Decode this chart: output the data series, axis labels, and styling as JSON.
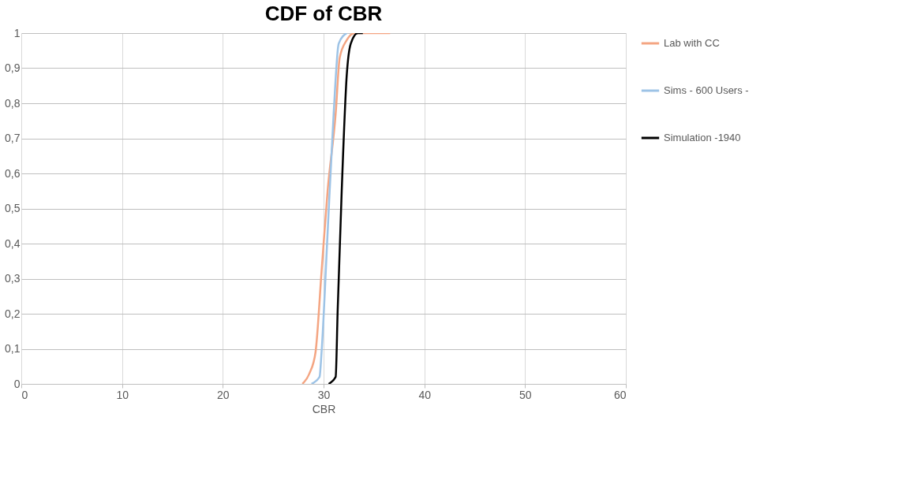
{
  "chart_data": {
    "type": "line",
    "title": "CDF of CBR",
    "xlabel": "CBR",
    "xlim": [
      0,
      60
    ],
    "xticks": [
      0,
      10,
      20,
      30,
      40,
      50,
      60
    ],
    "ylim": [
      0,
      1
    ],
    "yticks": [
      0,
      {
        "value": 0.1,
        "label": "0,1"
      },
      {
        "value": 0.2,
        "label": "0,2"
      },
      {
        "value": 0.3,
        "label": "0,3"
      },
      {
        "value": 0.4,
        "label": "0,4"
      },
      {
        "value": 0.5,
        "label": "0,5"
      },
      {
        "value": 0.6,
        "label": "0,6"
      },
      {
        "value": 0.7,
        "label": "0,7"
      },
      {
        "value": 0.8,
        "label": "0,8"
      },
      {
        "value": 0.9,
        "label": "0,9"
      },
      1
    ],
    "grid": true,
    "legend": "right",
    "line_style": "solid",
    "marker": "none",
    "series": [
      {
        "name": "Lab with CC",
        "color": "#f4a582",
        "x": [
          27.9,
          28.6,
          29.2,
          29.8,
          30.4,
          31.2,
          31.6,
          32.3,
          33.1,
          36.6
        ],
        "values": [
          0,
          0.03,
          0.09,
          0.32,
          0.55,
          0.77,
          0.93,
          0.98,
          1.0,
          1.0
        ]
      },
      {
        "name": "Sims - 600 Users -",
        "color": "#9dc3e6",
        "x": [
          28.8,
          29.6,
          29.8,
          30.4,
          31.0,
          31.5,
          32.3
        ],
        "values": [
          0,
          0.02,
          0.09,
          0.43,
          0.77,
          0.97,
          1.0
        ]
      },
      {
        "name": "Simulation -1940",
        "color": "#000000",
        "x": [
          30.5,
          31.2,
          31.4,
          31.8,
          32.3,
          32.7,
          33.4,
          33.9
        ],
        "values": [
          0,
          0.02,
          0.21,
          0.55,
          0.88,
          0.97,
          1.0,
          1.0
        ]
      }
    ]
  }
}
